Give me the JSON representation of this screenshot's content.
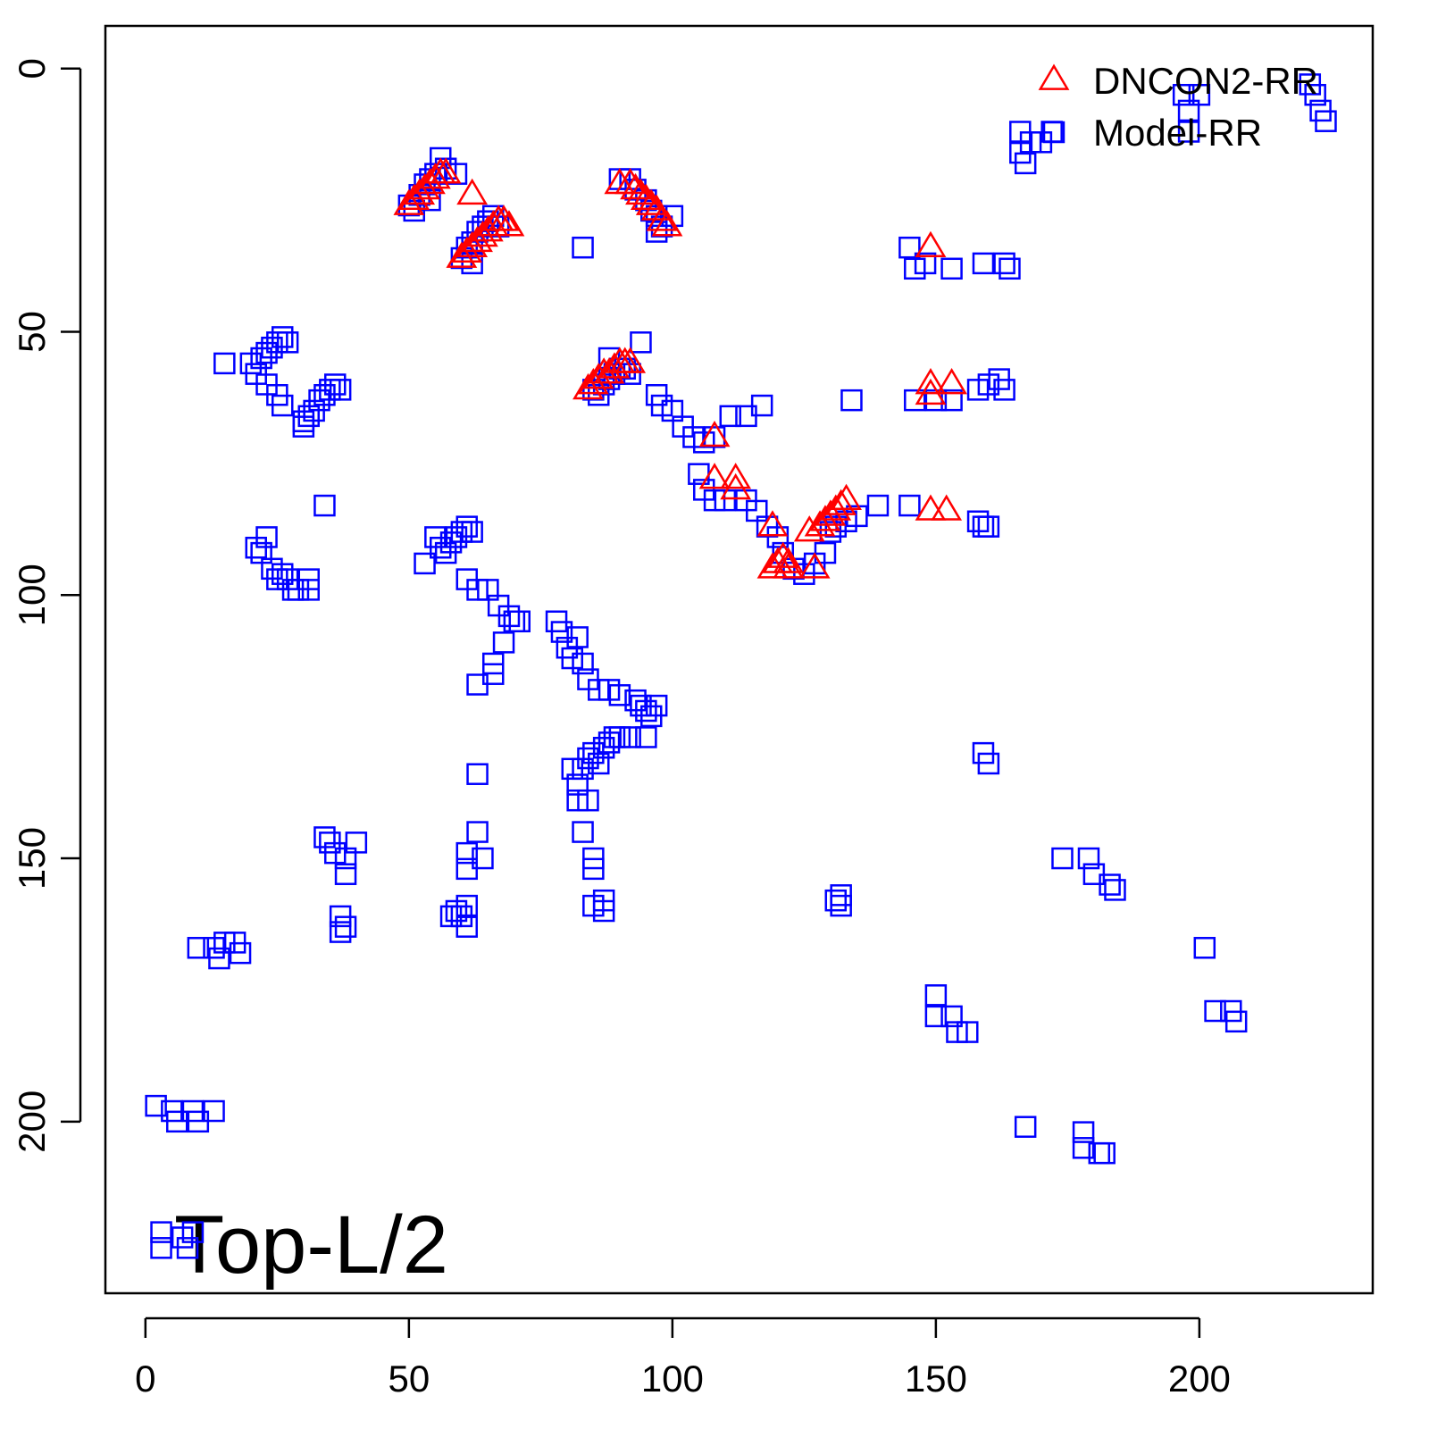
{
  "chart_data": {
    "type": "scatter",
    "annotation": "Top-L/2",
    "xlim": [
      -7.6,
      232.9
    ],
    "ylim": [
      -8.1,
      232.6
    ],
    "y_reversed": true,
    "xticks": [
      0,
      50,
      100,
      150,
      200
    ],
    "yticks": [
      0,
      50,
      100,
      150,
      200
    ],
    "legend": "topright",
    "series": [
      {
        "name": "DNCON2-RR",
        "color": "#ff0000",
        "marker": "triangle",
        "x": [
          50,
          51,
          52,
          53,
          54,
          55,
          56,
          57,
          62,
          60,
          61,
          62,
          63,
          64,
          65,
          66,
          67,
          68,
          69,
          90,
          92,
          93,
          94,
          95,
          96,
          97,
          98,
          99,
          84,
          85,
          86,
          87,
          88,
          89,
          90,
          91,
          92,
          108,
          108,
          112,
          112,
          119,
          119,
          120,
          121,
          122,
          122,
          127,
          126,
          128,
          129,
          130,
          131,
          132,
          133,
          149,
          149,
          149,
          153,
          149,
          152
        ],
        "y": [
          26,
          25,
          24,
          23,
          22,
          21,
          20,
          20,
          24,
          36,
          35,
          34,
          33,
          32,
          31,
          30,
          29,
          29,
          30,
          22,
          22,
          23,
          24,
          25,
          26,
          27,
          29,
          30,
          61,
          60,
          59,
          58,
          58,
          57,
          56,
          56,
          56,
          70,
          78,
          78,
          80,
          87,
          95,
          94,
          93,
          94,
          95,
          95,
          88,
          87,
          86,
          85,
          84,
          83,
          82,
          34,
          60,
          62,
          60,
          84,
          84
        ]
      },
      {
        "name": "Model-RR",
        "color": "#0000ff",
        "marker": "square",
        "x": [
          197,
          198,
          198,
          200,
          221,
          223,
          224,
          222,
          166,
          166,
          167,
          168,
          170,
          172,
          50,
          52,
          53,
          54,
          55,
          56,
          57,
          59,
          51,
          54,
          60,
          61,
          62,
          63,
          64,
          65,
          66,
          67,
          62,
          83,
          90,
          92,
          93,
          95,
          96,
          97,
          98,
          100,
          97,
          145,
          146,
          148,
          153,
          159,
          163,
          164,
          20,
          22,
          23,
          24,
          25,
          26,
          27,
          21,
          23,
          25,
          26,
          30,
          31,
          32,
          33,
          34,
          35,
          36,
          37,
          30,
          15,
          85,
          87,
          88,
          89,
          90,
          91,
          92,
          94,
          88,
          86,
          97,
          98,
          100,
          102,
          104,
          106,
          108,
          111,
          114,
          117,
          134,
          105,
          106,
          108,
          110,
          114,
          116,
          118,
          120,
          121,
          123,
          125,
          127,
          129,
          130,
          131,
          133,
          135,
          139,
          145,
          158,
          159,
          160,
          146,
          150,
          153,
          158,
          160,
          162,
          163,
          34,
          21,
          22,
          23,
          24,
          25,
          26,
          27,
          28,
          29,
          31,
          31,
          53,
          55,
          56,
          57,
          58,
          59,
          60,
          61,
          62,
          61,
          63,
          65,
          67,
          69,
          70,
          71,
          68,
          63,
          66,
          66,
          78,
          79,
          80,
          81,
          82,
          83,
          84,
          86,
          88,
          90,
          93,
          94,
          95,
          96,
          97,
          95,
          81,
          82,
          83,
          84,
          85,
          86,
          87,
          88,
          89,
          90,
          92,
          82,
          84,
          63,
          83,
          85,
          85,
          159,
          160,
          34,
          35,
          36,
          38,
          38,
          40,
          61,
          61,
          63,
          64,
          37,
          38,
          37,
          58,
          59,
          60,
          61,
          61,
          85,
          87,
          87,
          131,
          132,
          132,
          174,
          179,
          180,
          183,
          184,
          10,
          13,
          14,
          15,
          17,
          18,
          201,
          150,
          150,
          153,
          154,
          156,
          203,
          206,
          207,
          2,
          5,
          6,
          9,
          10,
          13,
          167,
          178,
          178,
          181,
          182,
          3,
          3,
          7,
          8,
          9
        ],
        "y": [
          5,
          8,
          12,
          5,
          3,
          8,
          10,
          5,
          12,
          16,
          18,
          14,
          14,
          12,
          26,
          24,
          22,
          21,
          20,
          17,
          19,
          20,
          27,
          25,
          36,
          34,
          33,
          31,
          30,
          29,
          28,
          30,
          37,
          34,
          21,
          21,
          23,
          25,
          27,
          28,
          30,
          28,
          31,
          34,
          38,
          37,
          38,
          37,
          37,
          38,
          56,
          55,
          54,
          53,
          52,
          51,
          52,
          58,
          60,
          62,
          64,
          67,
          66,
          65,
          63,
          62,
          61,
          60,
          61,
          68,
          56,
          61,
          60,
          59,
          58,
          57,
          57,
          58,
          52,
          55,
          62,
          62,
          64,
          65,
          68,
          70,
          71,
          70,
          66,
          66,
          64,
          63,
          77,
          80,
          82,
          82,
          82,
          84,
          87,
          89,
          92,
          95,
          96,
          94,
          92,
          88,
          87,
          86,
          85,
          83,
          83,
          86,
          87,
          87,
          63,
          63,
          63,
          61,
          60,
          59,
          61,
          83,
          91,
          92,
          89,
          95,
          97,
          96,
          97,
          99,
          99,
          99,
          97,
          94,
          89,
          91,
          92,
          90,
          89,
          88,
          87,
          88,
          97,
          99,
          99,
          102,
          104,
          105,
          105,
          109,
          117,
          113,
          115,
          105,
          107,
          110,
          112,
          108,
          113,
          116,
          118,
          118,
          119,
          120,
          121,
          122,
          123,
          121,
          127,
          133,
          136,
          133,
          131,
          130,
          132,
          129,
          128,
          127,
          127,
          127,
          139,
          139,
          134,
          145,
          150,
          152,
          130,
          132,
          146,
          147,
          149,
          150,
          153,
          147,
          149,
          152,
          145,
          150,
          161,
          163,
          164,
          161,
          160,
          161,
          159,
          163,
          159,
          158,
          160,
          158,
          157,
          159,
          150,
          150,
          153,
          155,
          156,
          167,
          167,
          169,
          166,
          166,
          168,
          167,
          176,
          180,
          180,
          183,
          183,
          179,
          179,
          181,
          197,
          198,
          200,
          198,
          200,
          198,
          201,
          202,
          205,
          206,
          206,
          221,
          224,
          222,
          224,
          221
        ]
      }
    ]
  }
}
